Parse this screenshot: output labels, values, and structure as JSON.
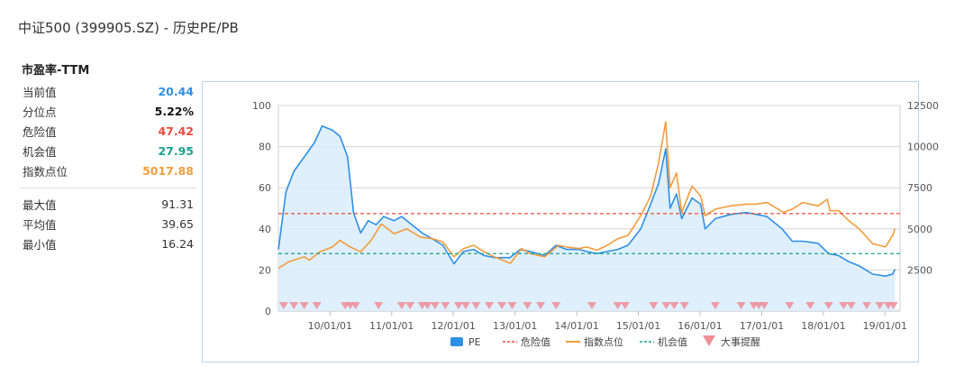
{
  "page": {
    "title": "中证500 (399905.SZ) - 历史PE/PB"
  },
  "section": {
    "title": "市盈率-TTM"
  },
  "stats": [
    {
      "label": "当前值",
      "value": "20.44",
      "color": "#2e8fe6"
    },
    {
      "label": "分位点",
      "value": "5.22%",
      "color": "#111111"
    },
    {
      "label": "危险值",
      "value": "47.42",
      "color": "#e84c3d"
    },
    {
      "label": "机会值",
      "value": "27.95",
      "color": "#1aa28f"
    },
    {
      "label": "指数点位",
      "value": "5017.88",
      "color": "#f39c3c"
    }
  ],
  "summary": [
    {
      "label": "最大值",
      "value": "91.31"
    },
    {
      "label": "平均值",
      "value": "39.65"
    },
    {
      "label": "最小值",
      "value": "16.24"
    }
  ],
  "chart_data": {
    "type": "line",
    "x_ticks": [
      "10/01/01",
      "11/01/01",
      "12/01/01",
      "13/01/01",
      "14/01/01",
      "15/01/01",
      "16/01/01",
      "17/01/01",
      "18/01/01",
      "19/01/01"
    ],
    "x_range": [
      "2009-03-01",
      "2019-03-31"
    ],
    "y_left": {
      "ticks": [
        0,
        20,
        40,
        60,
        80,
        100
      ],
      "range": [
        0,
        100
      ]
    },
    "y_right": {
      "ticks": [
        2500,
        5000,
        7500,
        10000,
        12500
      ],
      "range": [
        0,
        12500
      ]
    },
    "grid": true,
    "legend": {
      "position": "bottom",
      "items": [
        "PE",
        "危险值",
        "指数点位",
        "机会值",
        "大事提醒"
      ]
    },
    "series": [
      {
        "name": "PE",
        "axis": "left",
        "style": "area",
        "color": "#2e8fe6",
        "points": [
          [
            "2009-03-01",
            30
          ],
          [
            "2009-04-15",
            58
          ],
          [
            "2009-06-01",
            68
          ],
          [
            "2009-08-01",
            75
          ],
          [
            "2009-10-01",
            82
          ],
          [
            "2009-11-15",
            90
          ],
          [
            "2010-01-15",
            88
          ],
          [
            "2010-03-01",
            85
          ],
          [
            "2010-04-15",
            75
          ],
          [
            "2010-05-20",
            48
          ],
          [
            "2010-07-01",
            38
          ],
          [
            "2010-08-15",
            44
          ],
          [
            "2010-10-01",
            42
          ],
          [
            "2010-11-15",
            46
          ],
          [
            "2011-01-15",
            44
          ],
          [
            "2011-03-01",
            46
          ],
          [
            "2011-05-01",
            42
          ],
          [
            "2011-07-01",
            38
          ],
          [
            "2011-09-01",
            35
          ],
          [
            "2011-11-01",
            32
          ],
          [
            "2012-01-05",
            23
          ],
          [
            "2012-03-01",
            29
          ],
          [
            "2012-05-01",
            30
          ],
          [
            "2012-07-01",
            27
          ],
          [
            "2012-09-01",
            26
          ],
          [
            "2012-12-01",
            26
          ],
          [
            "2013-02-01",
            30
          ],
          [
            "2013-04-01",
            29
          ],
          [
            "2013-06-25",
            27
          ],
          [
            "2013-09-01",
            32
          ],
          [
            "2013-11-01",
            30
          ],
          [
            "2014-01-15",
            30
          ],
          [
            "2014-03-01",
            29
          ],
          [
            "2014-05-01",
            28
          ],
          [
            "2014-07-01",
            29
          ],
          [
            "2014-09-01",
            30
          ],
          [
            "2014-11-01",
            32
          ],
          [
            "2015-01-15",
            40
          ],
          [
            "2015-03-15",
            52
          ],
          [
            "2015-05-01",
            62
          ],
          [
            "2015-06-12",
            79
          ],
          [
            "2015-07-08",
            50
          ],
          [
            "2015-08-15",
            57
          ],
          [
            "2015-09-15",
            45
          ],
          [
            "2015-11-15",
            55
          ],
          [
            "2016-01-05",
            52
          ],
          [
            "2016-02-01",
            40
          ],
          [
            "2016-04-01",
            45
          ],
          [
            "2016-07-01",
            47
          ],
          [
            "2016-10-01",
            48
          ],
          [
            "2016-12-01",
            47
          ],
          [
            "2017-02-01",
            46
          ],
          [
            "2017-05-01",
            40
          ],
          [
            "2017-07-01",
            34
          ],
          [
            "2017-09-01",
            34
          ],
          [
            "2017-12-01",
            33
          ],
          [
            "2018-02-01",
            28
          ],
          [
            "2018-04-01",
            27
          ],
          [
            "2018-06-01",
            24
          ],
          [
            "2018-08-01",
            22
          ],
          [
            "2018-10-20",
            18
          ],
          [
            "2019-01-04",
            17
          ],
          [
            "2019-02-15",
            18
          ],
          [
            "2019-03-01",
            20.44
          ]
        ]
      },
      {
        "name": "指数点位",
        "axis": "right",
        "style": "line",
        "color": "#f39c3c",
        "points": [
          [
            "2009-03-01",
            2600
          ],
          [
            "2009-05-01",
            3000
          ],
          [
            "2009-08-01",
            3300
          ],
          [
            "2009-09-01",
            3100
          ],
          [
            "2009-11-01",
            3600
          ],
          [
            "2010-01-15",
            3900
          ],
          [
            "2010-03-01",
            4300
          ],
          [
            "2010-05-01",
            3900
          ],
          [
            "2010-07-01",
            3600
          ],
          [
            "2010-09-01",
            4300
          ],
          [
            "2010-11-01",
            5300
          ],
          [
            "2011-01-15",
            4700
          ],
          [
            "2011-04-01",
            5000
          ],
          [
            "2011-06-20",
            4500
          ],
          [
            "2011-09-01",
            4400
          ],
          [
            "2011-11-01",
            4200
          ],
          [
            "2012-01-05",
            3300
          ],
          [
            "2012-03-01",
            3800
          ],
          [
            "2012-05-01",
            4000
          ],
          [
            "2012-07-01",
            3600
          ],
          [
            "2012-09-01",
            3300
          ],
          [
            "2012-12-04",
            2900
          ],
          [
            "2013-02-08",
            3800
          ],
          [
            "2013-04-01",
            3500
          ],
          [
            "2013-06-25",
            3300
          ],
          [
            "2013-09-15",
            4000
          ],
          [
            "2013-11-01",
            3900
          ],
          [
            "2014-01-15",
            3800
          ],
          [
            "2014-03-01",
            3900
          ],
          [
            "2014-05-01",
            3700
          ],
          [
            "2014-07-01",
            4000
          ],
          [
            "2014-09-01",
            4400
          ],
          [
            "2014-11-01",
            4600
          ],
          [
            "2015-01-15",
            5800
          ],
          [
            "2015-03-15",
            7000
          ],
          [
            "2015-05-01",
            9000
          ],
          [
            "2015-06-12",
            11500
          ],
          [
            "2015-07-08",
            7500
          ],
          [
            "2015-08-15",
            8400
          ],
          [
            "2015-09-15",
            6000
          ],
          [
            "2015-11-15",
            7600
          ],
          [
            "2016-01-05",
            7000
          ],
          [
            "2016-02-01",
            5800
          ],
          [
            "2016-04-01",
            6200
          ],
          [
            "2016-07-01",
            6400
          ],
          [
            "2016-10-01",
            6500
          ],
          [
            "2016-12-01",
            6500
          ],
          [
            "2017-02-01",
            6600
          ],
          [
            "2017-05-10",
            6000
          ],
          [
            "2017-07-01",
            6200
          ],
          [
            "2017-09-01",
            6600
          ],
          [
            "2017-12-01",
            6400
          ],
          [
            "2018-01-24",
            6800
          ],
          [
            "2018-02-09",
            6100
          ],
          [
            "2018-04-01",
            6100
          ],
          [
            "2018-06-01",
            5500
          ],
          [
            "2018-08-01",
            5000
          ],
          [
            "2018-10-20",
            4100
          ],
          [
            "2019-01-04",
            3900
          ],
          [
            "2019-02-15",
            4600
          ],
          [
            "2019-03-01",
            5017.88
          ]
        ]
      },
      {
        "name": "危险值",
        "axis": "left",
        "style": "dashed",
        "color": "#e84c3d",
        "value": 47.42
      },
      {
        "name": "机会值",
        "axis": "left",
        "style": "dashed",
        "color": "#1aa28f",
        "value": 27.95
      }
    ],
    "events": {
      "name": "大事提醒",
      "color": "#f08d97",
      "dates": [
        "2009-04-01",
        "2009-06-01",
        "2009-08-01",
        "2009-10-15",
        "2010-04-01",
        "2010-05-01",
        "2010-06-01",
        "2010-10-15",
        "2011-03-01",
        "2011-04-20",
        "2011-07-01",
        "2011-08-01",
        "2011-09-15",
        "2011-11-15",
        "2012-02-01",
        "2012-03-15",
        "2012-05-15",
        "2012-08-01",
        "2012-10-15",
        "2012-12-15",
        "2013-03-15",
        "2013-06-01",
        "2013-09-01",
        "2014-04-01",
        "2014-09-01",
        "2014-10-15",
        "2015-04-01",
        "2015-06-15",
        "2015-08-01",
        "2015-10-01",
        "2016-04-01",
        "2016-09-01",
        "2016-11-15",
        "2016-12-15",
        "2017-01-15",
        "2017-06-15",
        "2017-10-15",
        "2018-02-01",
        "2018-05-01",
        "2018-06-15",
        "2018-09-15",
        "2018-12-01",
        "2019-01-20",
        "2019-02-20"
      ]
    }
  }
}
